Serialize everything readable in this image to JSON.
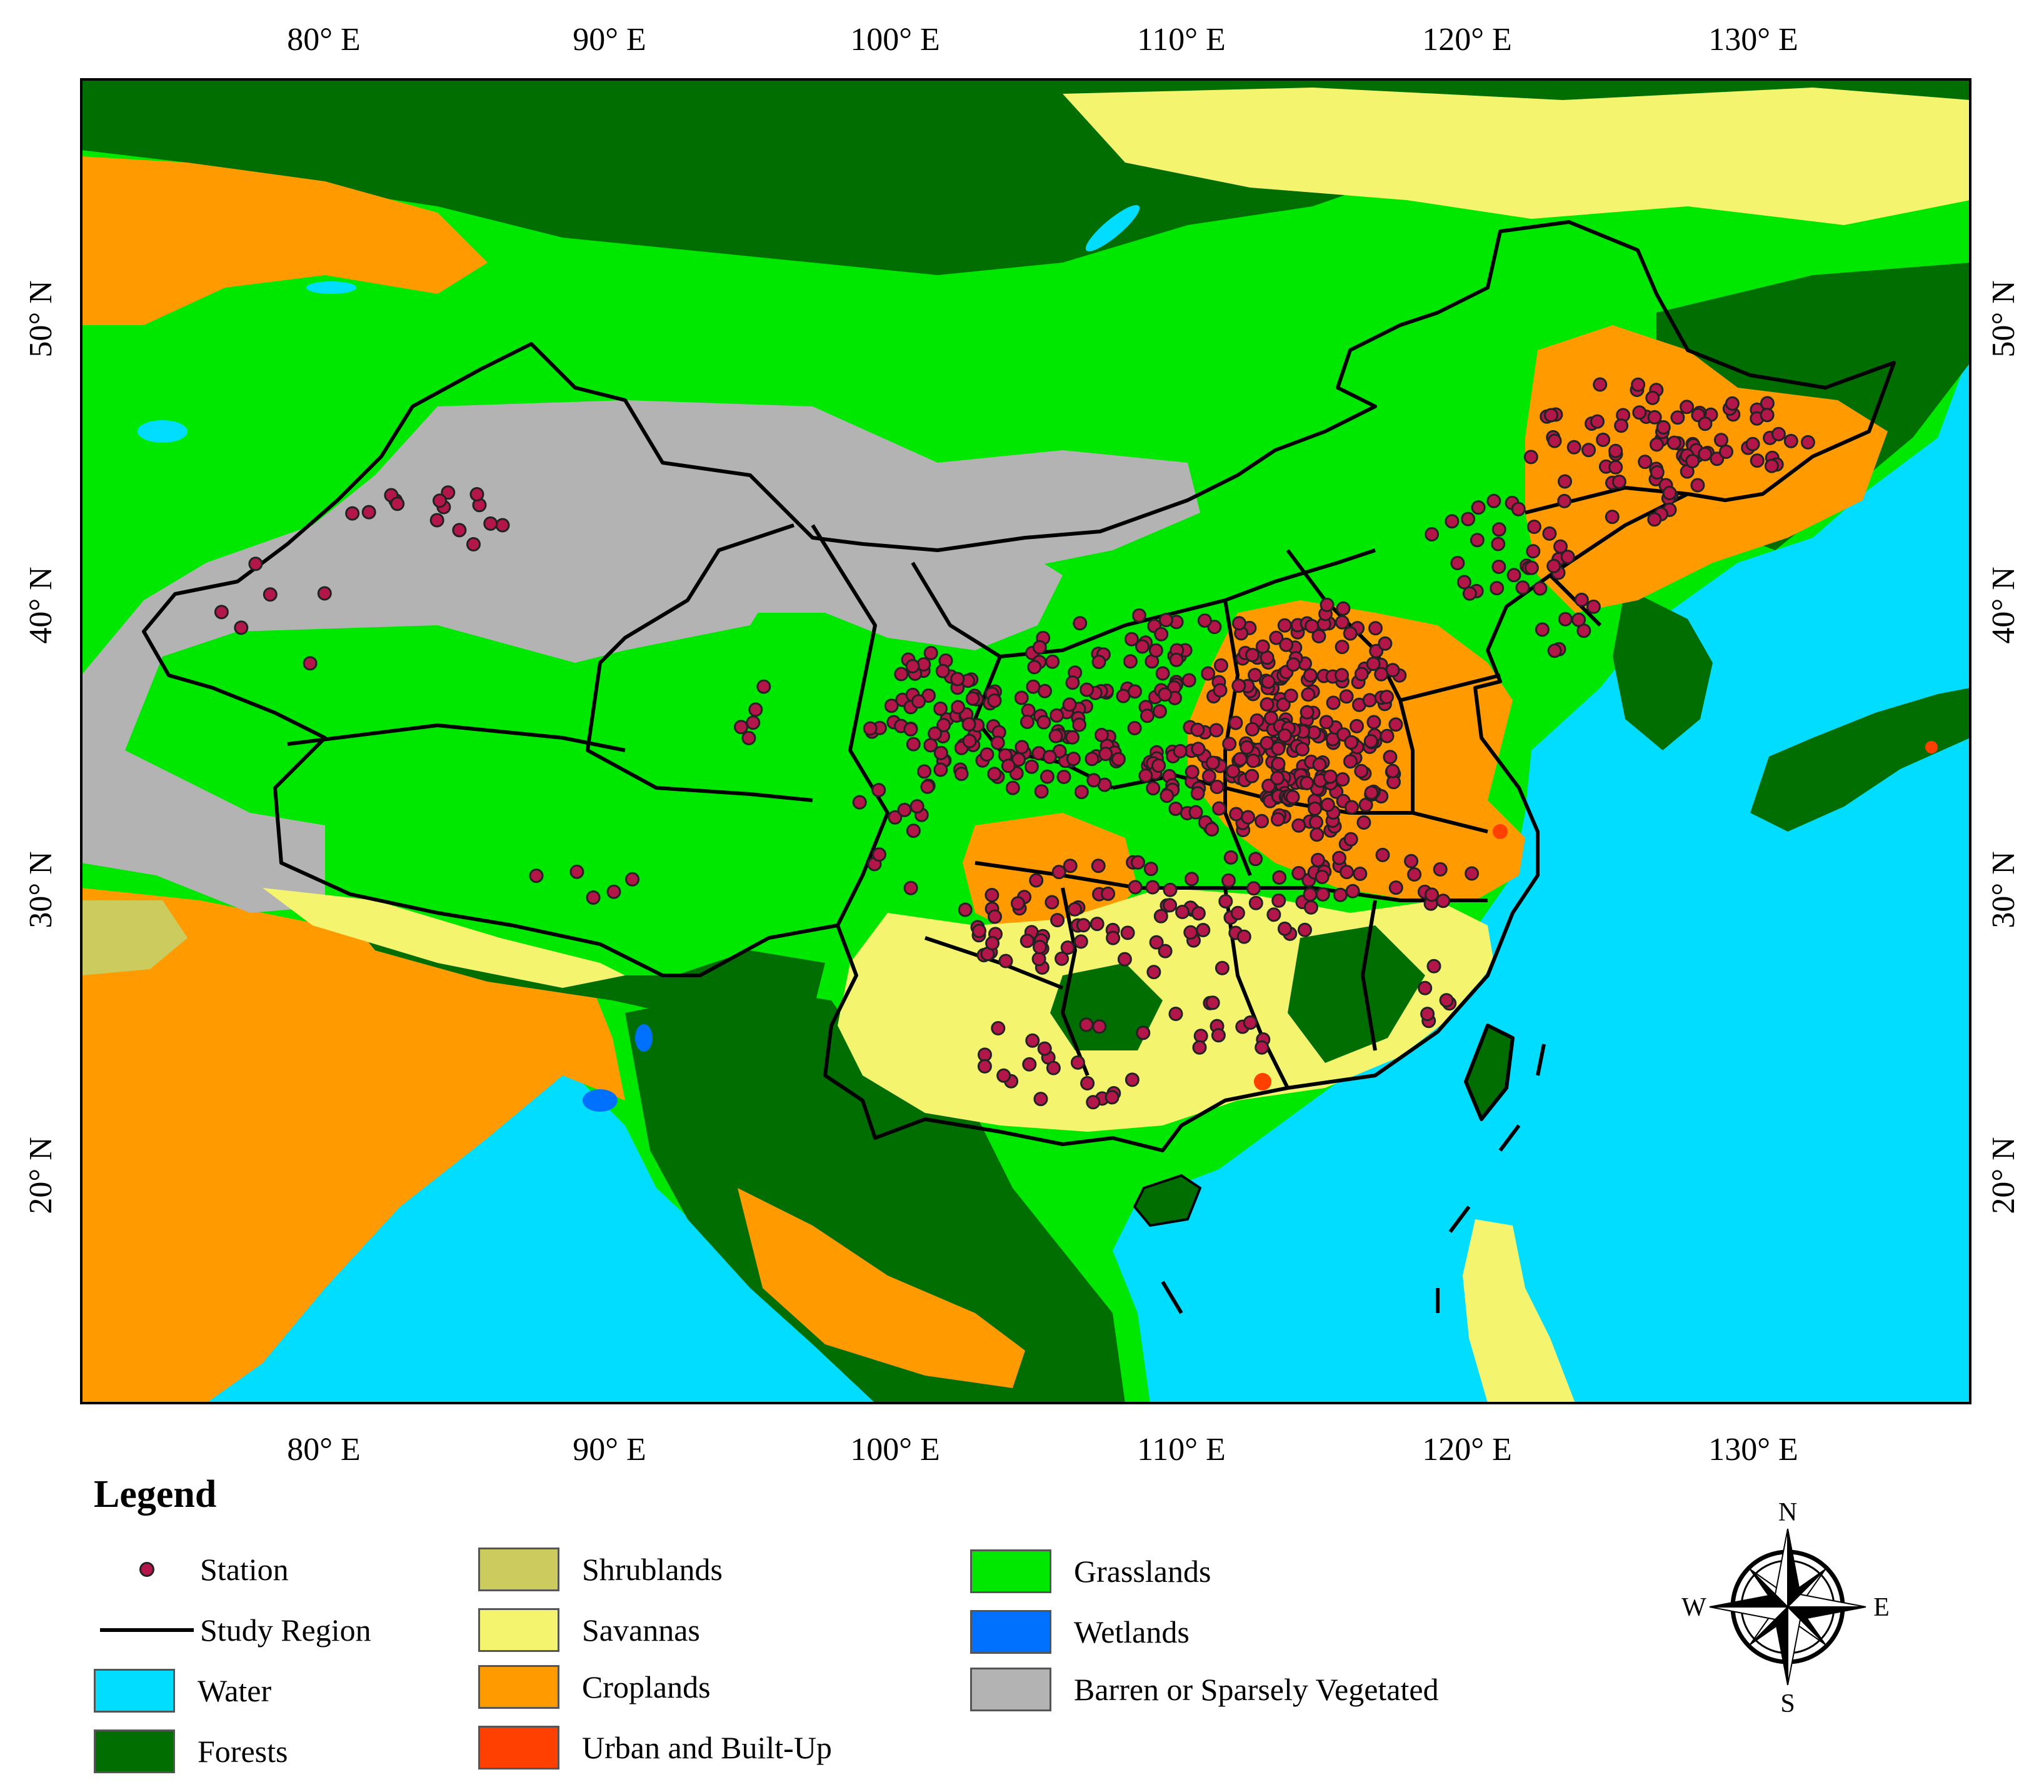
{
  "map": {
    "lon_ticks": [
      "80° E",
      "90° E",
      "100° E",
      "110° E",
      "120° E",
      "130° E"
    ],
    "lat_ticks": [
      "50° N",
      "40° N",
      "30° N",
      "20° N"
    ]
  },
  "legend": {
    "title": "Legend",
    "items": [
      {
        "label": "Station",
        "kind": "point",
        "color": "#b3174a"
      },
      {
        "label": "Study Region",
        "kind": "line",
        "color": "#000000"
      },
      {
        "label": "Water",
        "kind": "fill",
        "color": "#00ddff"
      },
      {
        "label": "Forests",
        "kind": "fill",
        "color": "#006e00"
      },
      {
        "label": "Shrublands",
        "kind": "fill",
        "color": "#cccc5e"
      },
      {
        "label": "Savannas",
        "kind": "fill",
        "color": "#f4f46e"
      },
      {
        "label": "Croplands",
        "kind": "fill",
        "color": "#ff9a00"
      },
      {
        "label": "Urban and Built-Up",
        "kind": "fill",
        "color": "#ff4000"
      },
      {
        "label": "Grasslands",
        "kind": "fill",
        "color": "#00e800"
      },
      {
        "label": "Wetlands",
        "kind": "fill",
        "color": "#0070ff"
      },
      {
        "label": "Barren or Sparsely Vegetated",
        "kind": "fill",
        "color": "#b3b3b3"
      }
    ]
  },
  "compass": {
    "north": "N",
    "south": "S",
    "east": "E",
    "west": "W"
  }
}
